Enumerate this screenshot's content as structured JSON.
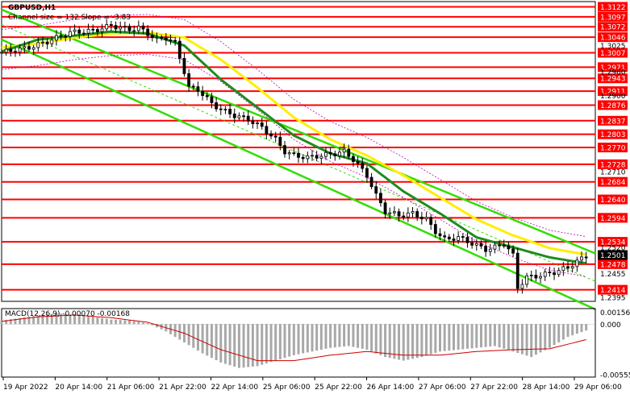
{
  "header": {
    "symbol": "GBPUSD,H1",
    "channel_info": "Channel size = 132  Slope = -3.83"
  },
  "macd": {
    "label": "MACD(12,26,9) -0.00070 -0.00168",
    "ticks": [
      "0.00156",
      "0.000",
      "-0.00555"
    ]
  },
  "colors": {
    "level_line": "#ff0000",
    "level_badge": "#ff0000",
    "channel": "#33dd00",
    "ma_fast": "#1e8c1e",
    "ma_slow": "#ffee00",
    "bollinger": "#c000c0",
    "candles": "#000000",
    "macd_hist": "#a8a8a8",
    "macd_signal": "#cc0000"
  },
  "chart_data": {
    "type": "candlestick",
    "title": "GBPUSD,H1",
    "ylim": [
      1.2385,
      1.3135
    ],
    "price_levels": [
      1.3122,
      1.3097,
      1.3072,
      1.3046,
      1.3007,
      1.2971,
      1.2943,
      1.2911,
      1.2876,
      1.2837,
      1.2803,
      1.277,
      1.2728,
      1.2684,
      1.264,
      1.2594,
      1.2534,
      1.2478,
      1.2414
    ],
    "axis_ticks": [
      "1.3025",
      "1.2960",
      "1.2900",
      "1.2710",
      "1.2520",
      "1.2455",
      "1.2395"
    ],
    "current_price": "1.2501",
    "x_labels": [
      "19 Apr 2022",
      "20 Apr 14:00",
      "21 Apr 06:00",
      "21 Apr 22:00",
      "22 Apr 14:00",
      "25 Apr 06:00",
      "25 Apr 22:00",
      "26 Apr 14:00",
      "27 Apr 06:00",
      "27 Apr 22:00",
      "28 Apr 14:00",
      "29 Apr 06:00"
    ],
    "close_path": [
      [
        0,
        1.3008
      ],
      [
        6,
        1.302
      ],
      [
        10,
        1.3035
      ],
      [
        15,
        1.3058
      ],
      [
        20,
        1.3062
      ],
      [
        24,
        1.3075
      ],
      [
        28,
        1.3065
      ],
      [
        30,
        1.307
      ],
      [
        34,
        1.304
      ],
      [
        36,
        1.3045
      ],
      [
        38,
        1.303
      ],
      [
        40,
        1.296
      ],
      [
        41,
        1.292
      ],
      [
        43,
        1.2915
      ],
      [
        46,
        1.288
      ],
      [
        48,
        1.2865
      ],
      [
        51,
        1.285
      ],
      [
        54,
        1.284
      ],
      [
        57,
        1.282
      ],
      [
        60,
        1.279
      ],
      [
        62,
        1.276
      ],
      [
        64,
        1.275
      ],
      [
        67,
        1.2745
      ],
      [
        70,
        1.275
      ],
      [
        73,
        1.2755
      ],
      [
        75,
        1.276
      ],
      [
        77,
        1.274
      ],
      [
        80,
        1.27
      ],
      [
        82,
        1.265
      ],
      [
        84,
        1.261
      ],
      [
        87,
        1.26
      ],
      [
        90,
        1.2605
      ],
      [
        93,
        1.259
      ],
      [
        95,
        1.256
      ],
      [
        97,
        1.254
      ],
      [
        100,
        1.2545
      ],
      [
        103,
        1.253
      ],
      [
        106,
        1.2515
      ],
      [
        108,
        1.252
      ],
      [
        110,
        1.253
      ],
      [
        112,
        1.25
      ],
      [
        113,
        1.242
      ],
      [
        115,
        1.2445
      ],
      [
        118,
        1.245
      ],
      [
        121,
        1.2458
      ],
      [
        124,
        1.247
      ],
      [
        126,
        1.2485
      ],
      [
        128,
        1.2498
      ]
    ],
    "ma_fast": [
      [
        0,
        1.301
      ],
      [
        8,
        1.304
      ],
      [
        16,
        1.305
      ],
      [
        24,
        1.306
      ],
      [
        32,
        1.3055
      ],
      [
        40,
        1.3025
      ],
      [
        48,
        1.294
      ],
      [
        56,
        1.287
      ],
      [
        64,
        1.28
      ],
      [
        72,
        1.2755
      ],
      [
        80,
        1.273
      ],
      [
        88,
        1.266
      ],
      [
        96,
        1.2605
      ],
      [
        104,
        1.2545
      ],
      [
        112,
        1.252
      ],
      [
        120,
        1.2495
      ],
      [
        128,
        1.248
      ]
    ],
    "ma_slow": [
      [
        0,
        1.302
      ],
      [
        8,
        1.303
      ],
      [
        16,
        1.3045
      ],
      [
        24,
        1.3055
      ],
      [
        32,
        1.3058
      ],
      [
        40,
        1.3045
      ],
      [
        48,
        1.299
      ],
      [
        56,
        1.292
      ],
      [
        64,
        1.2845
      ],
      [
        72,
        1.279
      ],
      [
        80,
        1.275
      ],
      [
        88,
        1.27
      ],
      [
        96,
        1.2645
      ],
      [
        104,
        1.259
      ],
      [
        112,
        1.255
      ],
      [
        120,
        1.2518
      ],
      [
        128,
        1.2502
      ]
    ],
    "channel_upper": [
      [
        0,
        1.3115
      ],
      [
        130,
        1.2505
      ]
    ],
    "channel_lower": [
      [
        0,
        1.304
      ],
      [
        130,
        1.2365
      ]
    ],
    "macd_hist": [
      [
        0,
        0.0004
      ],
      [
        6,
        0.0008
      ],
      [
        12,
        0.0012
      ],
      [
        16,
        0.001
      ],
      [
        20,
        0.0008
      ],
      [
        24,
        0.0005
      ],
      [
        28,
        0.0004
      ],
      [
        32,
        0.0001
      ],
      [
        36,
        -0.0008
      ],
      [
        40,
        -0.002
      ],
      [
        44,
        -0.0032
      ],
      [
        48,
        -0.0042
      ],
      [
        52,
        -0.0048
      ],
      [
        56,
        -0.0046
      ],
      [
        60,
        -0.004
      ],
      [
        64,
        -0.0034
      ],
      [
        68,
        -0.003
      ],
      [
        72,
        -0.0026
      ],
      [
        76,
        -0.0024
      ],
      [
        80,
        -0.0028
      ],
      [
        84,
        -0.0036
      ],
      [
        88,
        -0.004
      ],
      [
        92,
        -0.0036
      ],
      [
        96,
        -0.003
      ],
      [
        100,
        -0.0028
      ],
      [
        104,
        -0.0026
      ],
      [
        108,
        -0.0024
      ],
      [
        112,
        -0.003
      ],
      [
        116,
        -0.0036
      ],
      [
        120,
        -0.0026
      ],
      [
        124,
        -0.0014
      ],
      [
        128,
        -0.0007
      ]
    ],
    "macd_signal": [
      [
        0,
        0.0003
      ],
      [
        8,
        0.0008
      ],
      [
        16,
        0.001
      ],
      [
        24,
        0.0007
      ],
      [
        32,
        0.0002
      ],
      [
        40,
        -0.001
      ],
      [
        48,
        -0.0028
      ],
      [
        56,
        -0.004
      ],
      [
        64,
        -0.004
      ],
      [
        72,
        -0.0034
      ],
      [
        80,
        -0.003
      ],
      [
        88,
        -0.0034
      ],
      [
        96,
        -0.0034
      ],
      [
        104,
        -0.003
      ],
      [
        112,
        -0.0028
      ],
      [
        120,
        -0.0027
      ],
      [
        128,
        -0.0017
      ]
    ],
    "macd_ylim": [
      -0.0058,
      0.0017
    ]
  }
}
